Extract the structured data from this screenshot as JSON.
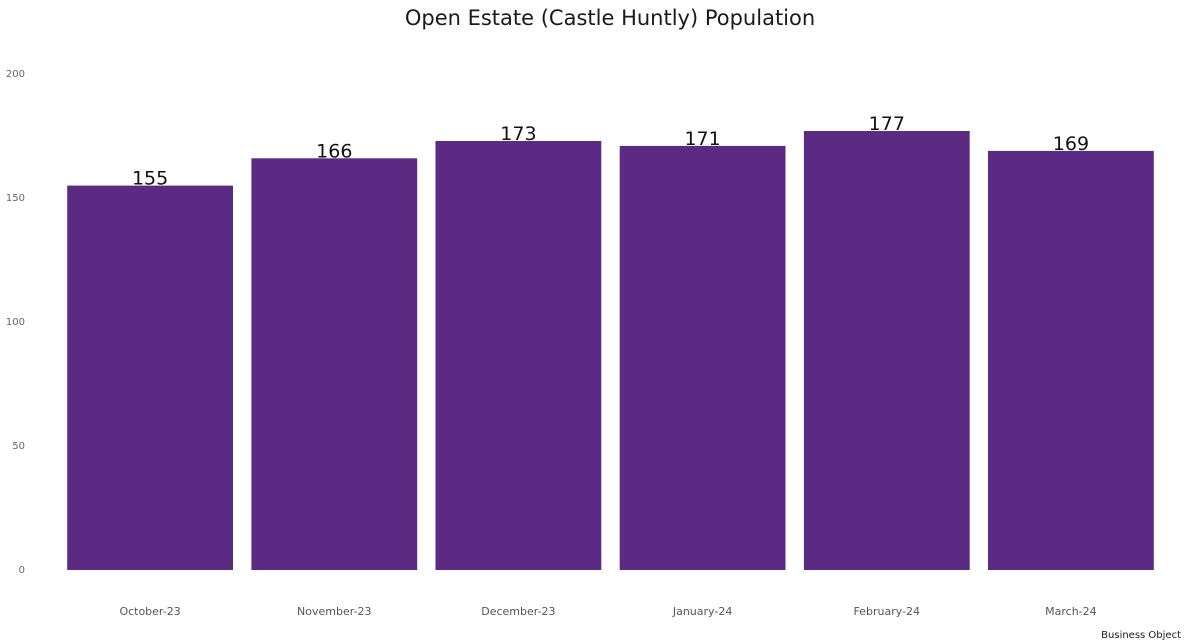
{
  "chart_data": {
    "type": "bar",
    "title": "Open Estate (Castle Huntly) Population",
    "xlabel": "",
    "ylabel": "",
    "categories": [
      "October-23",
      "November-23",
      "December-23",
      "January-24",
      "February-24",
      "March-24"
    ],
    "values": [
      155,
      166,
      173,
      171,
      177,
      169
    ],
    "data_labels": [
      "155",
      "166",
      "173",
      "171",
      "177",
      "169"
    ],
    "ylim": [
      0,
      200
    ],
    "yticks": [
      0,
      50,
      100,
      150,
      200
    ],
    "ytick_labels": [
      "0",
      "50",
      "100",
      "150",
      "200"
    ],
    "grid": false,
    "legend": "none",
    "bar_color": "#5b2a82"
  },
  "source_note": "Business Object"
}
